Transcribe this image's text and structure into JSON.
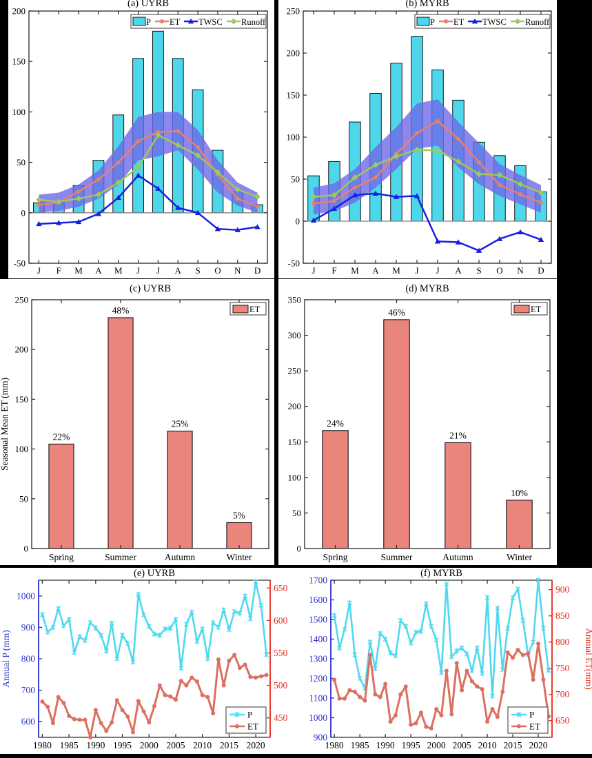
{
  "colors": {
    "background": "#000000",
    "panel_bg": "#ffffff",
    "axis": "#262626",
    "bar_P": "#4ED7EA",
    "line_ET": "#EC7E6D",
    "line_TWSC": "#1520DC",
    "line_Runoff": "#A0C85A",
    "band": "#6E69E7",
    "bar_ET_season": "#E9857A",
    "line_P_annual": "#4FD9EF",
    "line_ET_annual": "#DC6F60",
    "axis_left_blue": "#2B35CE",
    "axis_right_red": "#EA2D21",
    "zero_line": "#7F7F7F",
    "legend_border": "#555555"
  },
  "chart_data": [
    {
      "id": "a",
      "type": "bar+line-combo",
      "title": "(a) UYRB",
      "categories": [
        "J",
        "F",
        "M",
        "A",
        "M",
        "J",
        "J",
        "A",
        "S",
        "O",
        "N",
        "D"
      ],
      "ylim": [
        -50,
        200
      ],
      "yticks": [
        -50,
        0,
        50,
        100,
        150,
        200
      ],
      "bar_series": {
        "name": "P",
        "values": [
          10,
          12,
          27,
          52,
          97,
          153,
          180,
          153,
          122,
          62,
          21,
          8
        ]
      },
      "band": {
        "upper": [
          18,
          20,
          28,
          42,
          66,
          95,
          100,
          100,
          82,
          52,
          30,
          20
        ],
        "lower": [
          0,
          2,
          6,
          14,
          28,
          52,
          56,
          62,
          43,
          20,
          7,
          0
        ]
      },
      "line_series": [
        {
          "name": "ET",
          "marker": "circle",
          "values": [
            8,
            10,
            21,
            33,
            50,
            71,
            80,
            81,
            65,
            38,
            14,
            6
          ]
        },
        {
          "name": "Runoff",
          "marker": "diamond",
          "values": [
            13,
            11,
            14,
            18,
            30,
            45,
            77,
            67,
            57,
            40,
            23,
            16
          ]
        },
        {
          "name": "TWSC",
          "marker": "triangle",
          "values": [
            -11,
            -10,
            -9,
            -1,
            15,
            37,
            24,
            5,
            0,
            -16,
            -17,
            -14
          ]
        }
      ],
      "legend": [
        "P",
        "ET",
        "TWSC",
        "Runoff"
      ]
    },
    {
      "id": "b",
      "type": "bar+line-combo",
      "title": "(b) MYRB",
      "categories": [
        "J",
        "F",
        "M",
        "A",
        "M",
        "J",
        "J",
        "A",
        "S",
        "O",
        "N",
        "D"
      ],
      "ylim": [
        -50,
        250
      ],
      "yticks": [
        -50,
        0,
        50,
        100,
        150,
        200,
        250
      ],
      "bar_series": {
        "name": "P",
        "values": [
          54,
          71,
          118,
          152,
          188,
          220,
          180,
          144,
          94,
          78,
          66,
          35
        ]
      },
      "band": {
        "upper": [
          40,
          45,
          62,
          88,
          112,
          140,
          145,
          118,
          93,
          68,
          55,
          43
        ],
        "lower": [
          8,
          12,
          22,
          40,
          62,
          86,
          90,
          64,
          44,
          30,
          20,
          10
        ]
      },
      "line_series": [
        {
          "name": "ET",
          "marker": "circle",
          "values": [
            21,
            24,
            40,
            52,
            80,
            105,
            119,
            98,
            70,
            43,
            32,
            22
          ]
        },
        {
          "name": "Runoff",
          "marker": "diamond",
          "values": [
            29,
            31,
            52,
            67,
            77,
            85,
            84,
            71,
            56,
            55,
            44,
            34
          ]
        },
        {
          "name": "TWSC",
          "marker": "triangle",
          "values": [
            1,
            15,
            31,
            33,
            29,
            30,
            -24,
            -25,
            -35,
            -21,
            -13,
            -22
          ]
        }
      ],
      "legend": [
        "P",
        "ET",
        "TWSC",
        "Runoff"
      ]
    },
    {
      "id": "c",
      "type": "bar",
      "title": "(c) UYRB",
      "categories": [
        "Spring",
        "Summer",
        "Autumn",
        "Winter"
      ],
      "values": [
        105,
        232,
        118,
        26
      ],
      "bar_labels": [
        "22%",
        "48%",
        "25%",
        "5%"
      ],
      "ylim": [
        0,
        250
      ],
      "yticks": [
        0,
        50,
        100,
        150,
        200,
        250
      ],
      "ylabel": "Seasonal Mean ET (mm)",
      "legend": [
        "ET"
      ]
    },
    {
      "id": "d",
      "type": "bar",
      "title": "(d) MYRB",
      "categories": [
        "Spring",
        "Summer",
        "Autumn",
        "Winter"
      ],
      "values": [
        166,
        322,
        149,
        68
      ],
      "bar_labels": [
        "24%",
        "46%",
        "21%",
        "10%"
      ],
      "ylim": [
        0,
        350
      ],
      "yticks": [
        0,
        50,
        100,
        150,
        200,
        250,
        300,
        350
      ],
      "ylabel": "",
      "legend": [
        "ET"
      ]
    },
    {
      "id": "e",
      "type": "dual-line",
      "title": "(e) UYRB",
      "x": [
        1980,
        1981,
        1982,
        1983,
        1984,
        1985,
        1986,
        1987,
        1988,
        1989,
        1990,
        1991,
        1992,
        1993,
        1994,
        1995,
        1996,
        1997,
        1998,
        1999,
        2000,
        2001,
        2002,
        2003,
        2004,
        2005,
        2006,
        2007,
        2008,
        2009,
        2010,
        2011,
        2012,
        2013,
        2014,
        2015,
        2016,
        2017,
        2018,
        2019,
        2020,
        2021,
        2022
      ],
      "xticks": [
        1980,
        1985,
        1990,
        1995,
        2000,
        2005,
        2010,
        2015,
        2020
      ],
      "ylabel_left": "Annual P (mm)",
      "ylabel_right": "",
      "ylim_left": [
        550,
        1050
      ],
      "yticks_left": [
        600,
        700,
        800,
        900,
        1000
      ],
      "ylim_right": [
        420,
        662
      ],
      "yticks_right": [
        450,
        500,
        550,
        600,
        650
      ],
      "series": [
        {
          "name": "P",
          "axis": "left",
          "marker": "asterisk",
          "values": [
            940,
            885,
            900,
            960,
            905,
            925,
            820,
            870,
            858,
            915,
            898,
            875,
            825,
            913,
            800,
            875,
            848,
            790,
            1005,
            940,
            903,
            878,
            875,
            895,
            897,
            925,
            770,
            910,
            948,
            855,
            895,
            800,
            915,
            900,
            955,
            893,
            950,
            945,
            1000,
            928,
            1045,
            970,
            813
          ]
        },
        {
          "name": "ET",
          "axis": "right",
          "marker": "circle",
          "values": [
            475,
            467,
            442,
            482,
            473,
            453,
            448,
            447,
            447,
            420,
            462,
            442,
            430,
            443,
            477,
            462,
            452,
            428,
            476,
            460,
            443,
            468,
            500,
            485,
            483,
            478,
            507,
            500,
            512,
            506,
            485,
            482,
            457,
            540,
            500,
            538,
            547,
            527,
            532,
            513,
            512,
            514,
            516
          ]
        }
      ],
      "legend": [
        "P",
        "ET"
      ]
    },
    {
      "id": "f",
      "type": "dual-line",
      "title": "(f) MYRB",
      "x": [
        1980,
        1981,
        1982,
        1983,
        1984,
        1985,
        1986,
        1987,
        1988,
        1989,
        1990,
        1991,
        1992,
        1993,
        1994,
        1995,
        1996,
        1997,
        1998,
        1999,
        2000,
        2001,
        2002,
        2003,
        2004,
        2005,
        2006,
        2007,
        2008,
        2009,
        2010,
        2011,
        2012,
        2013,
        2014,
        2015,
        2016,
        2017,
        2018,
        2019,
        2020,
        2021,
        2022
      ],
      "xticks": [
        1980,
        1985,
        1990,
        1995,
        2000,
        2005,
        2010,
        2015,
        2020
      ],
      "ylabel_left": "",
      "ylabel_right": "Annual ET(mm)",
      "ylim_left": [
        900,
        1700
      ],
      "yticks_left": [
        900,
        1000,
        1100,
        1200,
        1300,
        1400,
        1500,
        1600,
        1700
      ],
      "ylim_right": [
        618,
        918
      ],
      "yticks_right": [
        650,
        700,
        750,
        800,
        850,
        900
      ],
      "series": [
        {
          "name": "P",
          "axis": "left",
          "marker": "asterisk",
          "values": [
            1520,
            1355,
            1450,
            1585,
            1320,
            1200,
            1150,
            1385,
            1250,
            1430,
            1400,
            1330,
            1315,
            1495,
            1465,
            1380,
            1435,
            1440,
            1580,
            1465,
            1395,
            1230,
            1680,
            1310,
            1340,
            1355,
            1325,
            1240,
            1355,
            1225,
            1612,
            1110,
            1558,
            1245,
            1455,
            1610,
            1655,
            1495,
            1320,
            1385,
            1700,
            1455,
            1240
          ]
        },
        {
          "name": "ET",
          "axis": "right",
          "marker": "circle",
          "values": [
            728,
            692,
            692,
            708,
            705,
            695,
            688,
            775,
            700,
            695,
            720,
            648,
            660,
            700,
            715,
            642,
            645,
            665,
            638,
            635,
            672,
            660,
            745,
            662,
            760,
            708,
            745,
            725,
            715,
            710,
            648,
            672,
            657,
            705,
            780,
            770,
            785,
            775,
            778,
            728,
            797,
            728,
            658
          ]
        }
      ],
      "legend": [
        "P",
        "ET"
      ]
    }
  ]
}
